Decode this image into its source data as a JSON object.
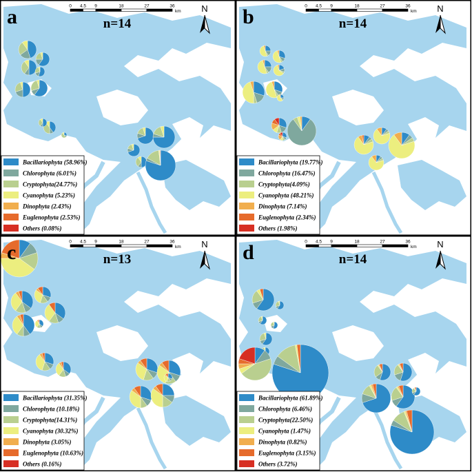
{
  "colors": {
    "water": "#a7d5ee",
    "Bacillariophyta": "#2e8bc8",
    "Chlorophyta": "#7fa89e",
    "Cryptophyta": "#b9cf8f",
    "Cyanophyta": "#ecee7f",
    "Dinophyta": "#f1ae4e",
    "Euglenophyta": "#e66b2c",
    "Others": "#d72f23"
  },
  "taxa": [
    "Bacillariophyta",
    "Chlorophyta",
    "Cryptophyta",
    "Cyanophyta",
    "Dinophyta",
    "Euglenophyta",
    "Others"
  ],
  "scale_bar": {
    "ticks": [
      "0",
      "4.5",
      "9",
      "18",
      "27",
      "36"
    ],
    "unit": "km"
  },
  "north_label": "N",
  "panels": [
    {
      "letter": "a",
      "n_label": "n=14",
      "legend": [
        "Bacillariophyta (58.96%)",
        "Chlorophyta (6.01%)",
        "Cryptophyta(24.77%)",
        "Cyanophyta (5.23%)",
        "Dinophyta (2.43%)",
        "Euglenophyta (2.53%)",
        "Others (0.08%)"
      ],
      "sites": [
        {
          "values": [
            0.45,
            0.2,
            0.25,
            0.1,
            0,
            0,
            0
          ]
        },
        {
          "values": [
            0.6,
            0.15,
            0.2,
            0.05,
            0,
            0,
            0
          ]
        },
        {
          "values": [
            0.5,
            0.1,
            0.3,
            0.1,
            0,
            0,
            0
          ]
        },
        {
          "values": [
            0.55,
            0.15,
            0.25,
            0.05,
            0,
            0,
            0
          ]
        },
        {
          "values": [
            0.5,
            0.2,
            0.25,
            0.05,
            0,
            0,
            0
          ]
        },
        {
          "values": [
            0.6,
            0.1,
            0.25,
            0.05,
            0,
            0,
            0
          ]
        },
        {
          "values": [
            0.4,
            0.1,
            0.4,
            0.1,
            0,
            0,
            0
          ]
        },
        {
          "values": [
            0.5,
            0.1,
            0.3,
            0.1,
            0,
            0,
            0
          ]
        },
        {
          "values": [
            0.3,
            0.1,
            0.5,
            0.1,
            0,
            0,
            0
          ]
        },
        {
          "values": [
            0.7,
            0.1,
            0.15,
            0.05,
            0,
            0,
            0
          ]
        },
        {
          "values": [
            0.75,
            0.05,
            0.15,
            0.05,
            0,
            0,
            0
          ]
        },
        {
          "values": [
            0.7,
            0.1,
            0.15,
            0.05,
            0,
            0,
            0
          ]
        },
        {
          "values": [
            0.5,
            0.1,
            0.3,
            0.1,
            0,
            0,
            0
          ]
        },
        {
          "values": [
            0.8,
            0.03,
            0.15,
            0.01,
            0.005,
            0.005,
            0
          ]
        }
      ]
    },
    {
      "letter": "b",
      "n_label": "n=14",
      "legend": [
        "Bacillariophyta (19.77%)",
        "Chlorophyta (16.47%)",
        "Cryptophyta(4.09%)",
        "Cyanophyta (48.21%)",
        "Dinophyta (7.14%)",
        "Euglenophyta (2.34%)",
        "Others (1.98%)"
      ],
      "sites": [
        {
          "values": [
            0.25,
            0.15,
            0.05,
            0.5,
            0.05,
            0,
            0
          ]
        },
        {
          "values": [
            0.3,
            0.1,
            0.05,
            0.5,
            0.05,
            0,
            0
          ]
        },
        {
          "values": [
            0.25,
            0.15,
            0.05,
            0.5,
            0.05,
            0,
            0
          ]
        },
        {
          "values": [
            0.2,
            0.1,
            0.05,
            0.6,
            0.05,
            0,
            0
          ]
        },
        {
          "values": [
            0.3,
            0.15,
            0.05,
            0.45,
            0.05,
            0,
            0
          ]
        },
        {
          "values": [
            0.3,
            0.1,
            0.05,
            0.5,
            0.05,
            0,
            0
          ]
        },
        {
          "values": [
            0.25,
            0.1,
            0.05,
            0.55,
            0.05,
            0,
            0
          ]
        },
        {
          "values": [
            0.3,
            0.15,
            0.1,
            0.1,
            0.15,
            0.1,
            0.1
          ]
        },
        {
          "values": [
            0.3,
            0.1,
            0.1,
            0.1,
            0.2,
            0.1,
            0.1
          ]
        },
        {
          "values": [
            0.1,
            0.8,
            0.05,
            0.03,
            0.02,
            0,
            0
          ]
        },
        {
          "values": [
            0.1,
            0.05,
            0.05,
            0.7,
            0.07,
            0.03,
            0
          ]
        },
        {
          "values": [
            0.1,
            0.05,
            0.05,
            0.7,
            0.1,
            0,
            0
          ]
        },
        {
          "values": [
            0.1,
            0.05,
            0.05,
            0.7,
            0.1,
            0,
            0
          ]
        },
        {
          "values": [
            0.1,
            0.05,
            0.05,
            0.7,
            0.1,
            0,
            0
          ]
        }
      ]
    },
    {
      "letter": "c",
      "n_label": "n=13",
      "legend": [
        "Bacillariophyta (31.35%)",
        "Chlorophyta (10.18%)",
        "Cryptophyta(14.31%)",
        "Cyanophyta (30.32%)",
        "Dinophyta (3.05%)",
        "Euglenophyta (10.63%)",
        "Others (0.16%)"
      ],
      "sites": [
        {
          "values": [
            0.1,
            0.1,
            0.15,
            0.4,
            0.05,
            0.2,
            0
          ]
        },
        {
          "values": [
            0.35,
            0.1,
            0.15,
            0.3,
            0.05,
            0.05,
            0
          ]
        },
        {
          "values": [
            0.3,
            0.1,
            0.15,
            0.3,
            0.05,
            0.1,
            0
          ]
        },
        {
          "values": [
            0.35,
            0.1,
            0.15,
            0.3,
            0,
            0.1,
            0
          ]
        },
        {
          "values": [
            0.4,
            0.1,
            0.1,
            0.3,
            0.05,
            0.05,
            0
          ]
        },
        {
          "values": [
            0.35,
            0.1,
            0.15,
            0.3,
            0.05,
            0.05,
            0
          ]
        },
        {
          "values": [
            0.3,
            0.1,
            0.15,
            0.35,
            0.05,
            0.05,
            0
          ]
        },
        {
          "values": [
            0.35,
            0.1,
            0.15,
            0.3,
            0.05,
            0.05,
            0
          ]
        },
        {
          "values": [
            0.3,
            0.1,
            0.15,
            0.3,
            0.05,
            0.1,
            0
          ]
        },
        {
          "values": [
            0.3,
            0.1,
            0.15,
            0.3,
            0.05,
            0.1,
            0
          ]
        },
        {
          "values": [
            0.3,
            0.1,
            0.1,
            0.35,
            0.05,
            0.1,
            0
          ]
        },
        {
          "values": [
            0.25,
            0.1,
            0.15,
            0.35,
            0.05,
            0.1,
            0
          ]
        },
        {
          "values": [
            0.3,
            0.1,
            0.15,
            0.3,
            0.05,
            0.1,
            0
          ]
        }
      ]
    },
    {
      "letter": "d",
      "n_label": "n=14",
      "legend": [
        "Bacillariophyta (61.89%)",
        "Chlorophyta (6.46%)",
        "Cryptophyta(22.50%)",
        "Cyanophyta (1.47%)",
        "Dinophyta (0.82%)",
        "Euglenophyta (3.15%)",
        "Others (3.72%)"
      ],
      "sites": [
        {
          "values": [
            0.6,
            0.1,
            0.2,
            0.05,
            0,
            0.05,
            0
          ]
        },
        {
          "values": [
            0.6,
            0.1,
            0.25,
            0.05,
            0,
            0,
            0
          ]
        },
        {
          "values": [
            0.6,
            0.1,
            0.25,
            0.05,
            0,
            0,
            0
          ]
        },
        {
          "values": [
            0.55,
            0.15,
            0.25,
            0.05,
            0,
            0,
            0
          ]
        },
        {
          "values": [
            0.6,
            0.1,
            0.25,
            0.05,
            0,
            0,
            0
          ]
        },
        {
          "values": [
            0.6,
            0.1,
            0.25,
            0.05,
            0,
            0,
            0
          ]
        },
        {
          "values": [
            0.1,
            0.1,
            0.45,
            0.05,
            0.05,
            0.05,
            0.2
          ]
        },
        {
          "values": [
            0.8,
            0.05,
            0.12,
            0.01,
            0,
            0.02,
            0
          ]
        },
        {
          "values": [
            0.55,
            0.1,
            0.25,
            0.02,
            0.02,
            0.06,
            0
          ]
        },
        {
          "values": [
            0.55,
            0.15,
            0.2,
            0.02,
            0.02,
            0.06,
            0
          ]
        },
        {
          "values": [
            0.7,
            0.1,
            0.12,
            0.02,
            0.02,
            0.04,
            0
          ]
        },
        {
          "values": [
            0.6,
            0.1,
            0.2,
            0.02,
            0.02,
            0.06,
            0
          ]
        },
        {
          "values": [
            0.8,
            0.04,
            0.1,
            0.01,
            0.01,
            0.04,
            0
          ]
        },
        {
          "values": [
            0.6,
            0.1,
            0.2,
            0.02,
            0.02,
            0.06,
            0
          ]
        }
      ]
    }
  ]
}
